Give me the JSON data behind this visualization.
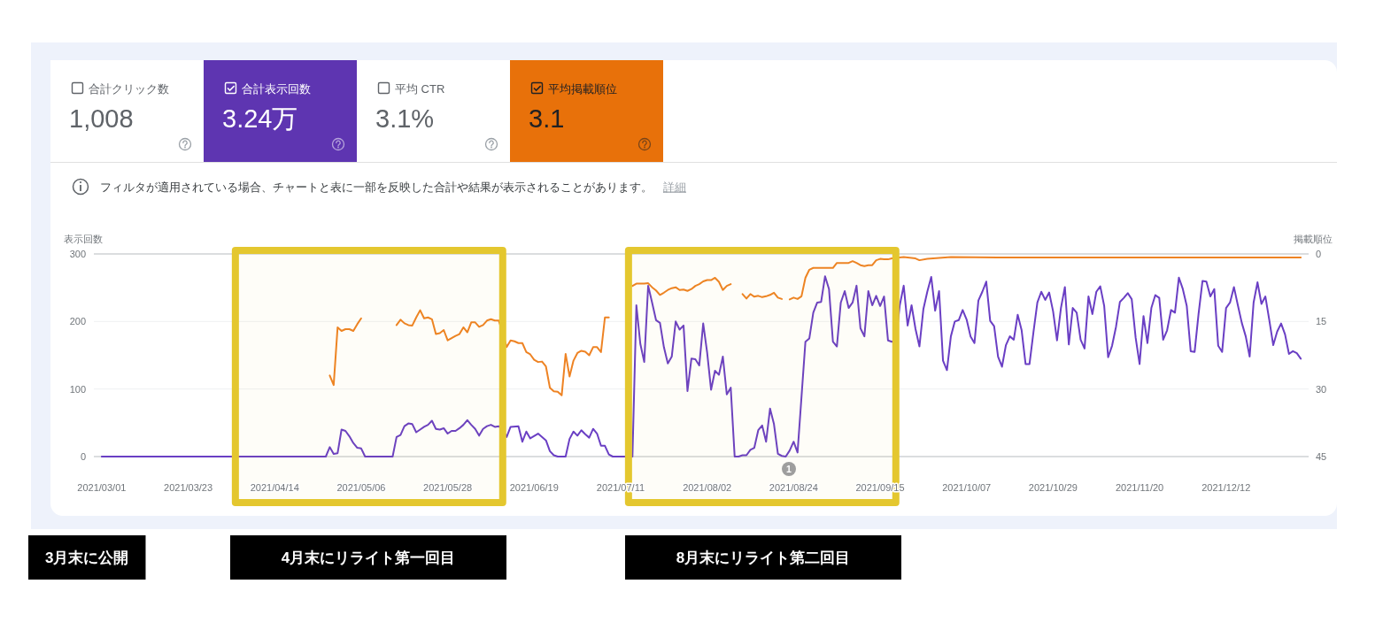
{
  "chart_data": [
    {
      "type": "other",
      "categories": [
        "合計クリック数",
        "合計表示回数",
        "平均 CTR",
        "平均掲載順位"
      ],
      "value_labels": [
        "1,008",
        "3.24万",
        "3.1%",
        "3.1"
      ],
      "colors": [
        null,
        "#5e35b1",
        null,
        "#e8710a"
      ],
      "annotations": [
        "フィルタが適用されている場合、チャートと表に一部を反映した合計や結果が表示されることがあります。",
        "詳細"
      ]
    },
    {
      "type": "line",
      "ylabel": "表示回数",
      "y2label": "掲載順位",
      "xlim": [
        "2021-02-27",
        "2022-01-02"
      ],
      "xticks": [
        {
          "value": "2021-03-01",
          "label": "2021/03/01"
        },
        {
          "value": "2021-03-23",
          "label": "2021/03/23"
        },
        {
          "value": "2021-04-14",
          "label": "2021/04/14"
        },
        {
          "value": "2021-05-06",
          "label": "2021/05/06"
        },
        {
          "value": "2021-05-28",
          "label": "2021/05/28"
        },
        {
          "value": "2021-06-19",
          "label": "2021/06/19"
        },
        {
          "value": "2021-07-11",
          "label": "2021/07/11"
        },
        {
          "value": "2021-08-02",
          "label": "2021/08/02"
        },
        {
          "value": "2021-08-24",
          "label": "2021/08/24"
        },
        {
          "value": "2021-09-15",
          "label": "2021/09/15"
        },
        {
          "value": "2021-10-07",
          "label": "2021/10/07"
        },
        {
          "value": "2021-10-29",
          "label": "2021/10/29"
        },
        {
          "value": "2021-11-20",
          "label": "2021/11/20"
        },
        {
          "value": "2021-12-12",
          "label": "2021/12/12"
        }
      ],
      "ylim": [
        0,
        300
      ],
      "yticks": [
        0,
        100,
        200,
        300
      ],
      "y2lim": [
        45,
        0
      ],
      "y2ticks": [
        0,
        15,
        30,
        45
      ],
      "grid": "y",
      "series": [
        {
          "color": "#6a3fc4",
          "x": [
            "2021-03-01",
            "2021-04-27",
            "2021-04-28",
            "2021-04-29",
            "2021-04-30",
            "2021-05-01",
            "2021-05-02",
            "2021-05-03",
            "2021-05-04",
            "2021-05-05",
            "2021-05-06",
            "2021-05-07",
            "2021-05-14",
            "2021-05-15",
            "2021-05-16",
            "2021-05-17",
            "2021-05-18",
            "2021-05-19",
            "2021-05-20",
            "2021-05-21",
            "2021-05-22",
            "2021-05-23",
            "2021-05-24",
            "2021-05-25",
            "2021-05-26",
            "2021-05-27",
            "2021-05-28",
            "2021-05-29",
            "2021-05-30",
            "2021-05-31",
            "2021-06-01",
            "2021-06-02",
            "2021-06-03",
            "2021-06-04",
            "2021-06-05",
            "2021-06-06",
            "2021-06-07",
            "2021-06-08",
            "2021-06-09",
            "2021-06-10",
            "2021-06-11",
            "2021-06-12",
            "2021-06-13",
            "2021-06-15",
            "2021-06-16",
            "2021-06-17",
            "2021-06-18",
            "2021-06-20",
            "2021-06-22",
            "2021-06-23",
            "2021-06-24",
            "2021-06-25",
            "2021-06-27",
            "2021-06-28",
            "2021-06-29",
            "2021-06-30",
            "2021-07-01",
            "2021-07-02",
            "2021-07-03",
            "2021-07-04",
            "2021-07-05",
            "2021-07-06",
            "2021-07-07",
            "2021-07-08",
            "2021-07-09",
            "2021-07-14",
            "2021-07-15",
            "2021-07-16",
            "2021-07-17",
            "2021-07-18",
            "2021-07-19",
            "2021-07-20",
            "2021-07-21",
            "2021-07-22",
            "2021-07-23",
            "2021-07-24",
            "2021-07-25",
            "2021-07-26",
            "2021-07-27",
            "2021-07-28",
            "2021-07-29",
            "2021-07-30",
            "2021-07-31",
            "2021-08-01",
            "2021-08-02",
            "2021-08-03",
            "2021-08-04",
            "2021-08-05",
            "2021-08-06",
            "2021-08-07",
            "2021-08-08",
            "2021-08-09",
            "2021-08-10",
            "2021-08-11",
            "2021-08-12",
            "2021-08-13",
            "2021-08-14",
            "2021-08-15",
            "2021-08-16",
            "2021-08-17",
            "2021-08-18",
            "2021-08-19",
            "2021-08-20",
            "2021-08-21",
            "2021-08-22",
            "2021-08-23",
            "2021-08-24",
            "2021-08-25",
            "2021-08-27",
            "2021-08-28",
            "2021-08-29",
            "2021-08-30",
            "2021-08-31",
            "2021-09-01",
            "2021-09-02",
            "2021-09-03",
            "2021-09-04",
            "2021-09-05",
            "2021-09-06",
            "2021-09-07",
            "2021-09-08",
            "2021-09-09",
            "2021-09-10",
            "2021-09-11",
            "2021-09-12",
            "2021-09-13",
            "2021-09-14",
            "2021-09-15",
            "2021-09-16",
            "2021-09-17",
            "2021-09-18",
            "2021-09-19",
            "2021-09-20",
            "2021-09-21",
            "2021-09-22",
            "2021-09-23",
            "2021-09-24",
            "2021-09-25",
            "2021-09-26",
            "2021-09-27",
            "2021-09-28",
            "2021-09-29",
            "2021-09-30",
            "2021-10-01",
            "2021-10-02",
            "2021-10-03",
            "2021-10-04",
            "2021-10-05",
            "2021-10-06",
            "2021-10-07",
            "2021-10-08",
            "2021-10-09",
            "2021-10-10",
            "2021-10-11",
            "2021-10-12",
            "2021-10-13",
            "2021-10-14",
            "2021-10-15",
            "2021-10-16",
            "2021-10-17",
            "2021-10-18",
            "2021-10-19",
            "2021-10-20",
            "2021-10-21",
            "2021-10-22",
            "2021-10-23",
            "2021-10-24",
            "2021-10-25",
            "2021-10-26",
            "2021-10-27",
            "2021-10-28",
            "2021-10-29",
            "2021-10-30",
            "2021-10-31",
            "2021-11-01",
            "2021-11-02",
            "2021-11-03",
            "2021-11-04",
            "2021-11-05",
            "2021-11-06",
            "2021-11-07",
            "2021-11-08",
            "2021-11-09",
            "2021-11-10",
            "2021-11-11",
            "2021-11-12",
            "2021-11-13",
            "2021-11-14",
            "2021-11-15",
            "2021-11-16",
            "2021-11-17",
            "2021-11-18",
            "2021-11-19",
            "2021-11-20",
            "2021-11-21",
            "2021-11-22",
            "2021-11-23",
            "2021-11-24",
            "2021-11-25",
            "2021-11-26",
            "2021-11-27",
            "2021-11-28",
            "2021-11-29",
            "2021-11-30",
            "2021-12-01",
            "2021-12-02",
            "2021-12-03",
            "2021-12-04",
            "2021-12-05",
            "2021-12-06",
            "2021-12-07",
            "2021-12-08",
            "2021-12-09",
            "2021-12-10",
            "2021-12-11",
            "2021-12-12",
            "2021-12-13",
            "2021-12-14",
            "2021-12-15",
            "2021-12-16",
            "2021-12-17",
            "2021-12-18",
            "2021-12-19",
            "2021-12-20",
            "2021-12-21",
            "2021-12-22",
            "2021-12-23",
            "2021-12-24",
            "2021-12-25",
            "2021-12-26",
            "2021-12-27",
            "2021-12-28",
            "2021-12-29",
            "2021-12-30",
            "2021-12-31"
          ],
          "values": [
            0,
            0,
            14,
            4,
            5,
            40,
            38,
            30,
            20,
            13,
            12,
            0,
            0,
            29,
            32,
            45,
            49,
            48,
            36,
            40,
            44,
            47,
            53,
            41,
            40,
            42,
            34,
            38,
            38,
            42,
            47,
            54,
            47,
            41,
            31,
            41,
            45,
            47,
            44,
            45,
            40,
            29,
            44,
            45,
            22,
            37,
            27,
            34,
            24,
            8,
            2,
            0,
            0,
            26,
            37,
            31,
            39,
            33,
            28,
            41,
            34,
            16,
            16,
            3,
            0,
            0,
            224,
            167,
            140,
            253,
            228,
            202,
            198,
            162,
            138,
            148,
            200,
            188,
            194,
            97,
            145,
            144,
            135,
            197,
            154,
            99,
            127,
            121,
            148,
            92,
            102,
            0,
            0,
            2,
            2,
            10,
            13,
            39,
            46,
            22,
            71,
            48,
            4,
            1,
            0,
            9,
            22,
            6,
            170,
            175,
            213,
            228,
            229,
            267,
            248,
            170,
            163,
            228,
            245,
            220,
            228,
            253,
            190,
            178,
            245,
            224,
            238,
            223,
            237,
            172,
            170,
            172,
            224,
            253,
            194,
            224,
            189,
            163,
            218,
            244,
            266,
            216,
            245,
            142,
            128,
            178,
            200,
            202,
            217,
            203,
            178,
            168,
            231,
            244,
            259,
            201,
            193,
            148,
            133,
            165,
            178,
            173,
            210,
            187,
            137,
            137,
            184,
            228,
            244,
            232,
            243,
            215,
            172,
            220,
            251,
            166,
            220,
            213,
            173,
            160,
            237,
            211,
            244,
            252,
            223,
            147,
            164,
            192,
            229,
            235,
            242,
            233,
            176,
            137,
            208,
            168,
            220,
            239,
            235,
            173,
            187,
            217,
            213,
            265,
            248,
            223,
            156,
            155,
            211,
            260,
            259,
            237,
            248,
            164,
            155,
            220,
            228,
            251,
            224,
            198,
            178,
            148,
            228,
            258,
            226,
            237,
            202,
            165,
            185,
            197,
            181,
            152,
            156,
            153,
            145
          ]
        },
        {
          "color": "#ee8324",
          "axis": "y2",
          "x": [
            "2021-04-28",
            "2021-04-29",
            "2021-04-30",
            "2021-05-01",
            "2021-05-02",
            "2021-05-03",
            "2021-05-04",
            "2021-05-05",
            "2021-05-06"
          ],
          "values": [
            27.0,
            29.1,
            16.3,
            17.1,
            16.7,
            16.7,
            17.1,
            15.6,
            14.3
          ]
        },
        {
          "color": "#ee8324",
          "axis": "y2",
          "x": [
            "2021-05-15",
            "2021-05-16",
            "2021-05-17",
            "2021-05-18",
            "2021-05-19",
            "2021-05-20",
            "2021-05-21",
            "2021-05-22",
            "2021-05-23",
            "2021-05-24",
            "2021-05-25",
            "2021-05-26",
            "2021-05-27",
            "2021-05-28",
            "2021-05-29",
            "2021-05-30",
            "2021-05-31",
            "2021-06-01",
            "2021-06-02",
            "2021-06-03",
            "2021-06-04",
            "2021-06-05",
            "2021-06-06",
            "2021-06-07",
            "2021-06-08",
            "2021-06-09",
            "2021-06-10",
            "2021-06-11",
            "2021-06-12",
            "2021-06-13",
            "2021-06-14",
            "2021-06-15",
            "2021-06-16",
            "2021-06-17",
            "2021-06-18",
            "2021-06-19",
            "2021-06-20",
            "2021-06-21",
            "2021-06-22",
            "2021-06-23",
            "2021-06-24",
            "2021-06-25",
            "2021-06-26",
            "2021-06-27",
            "2021-06-28",
            "2021-06-29",
            "2021-06-30",
            "2021-07-01",
            "2021-07-02",
            "2021-07-03",
            "2021-07-04",
            "2021-07-05",
            "2021-07-06",
            "2021-07-07",
            "2021-07-08"
          ],
          "values": [
            15.8,
            14.6,
            15.4,
            15.8,
            15.9,
            14.1,
            12.5,
            14.3,
            14.1,
            14.5,
            17.8,
            17.6,
            16.9,
            19.2,
            18.7,
            18.2,
            17.8,
            16.3,
            17.4,
            15.2,
            15.2,
            16.2,
            15.8,
            14.8,
            14.5,
            14.8,
            14.8,
            17.5,
            20.7,
            19.2,
            19.4,
            19.8,
            19.8,
            21.8,
            22.3,
            23.5,
            24.0,
            23.9,
            25.0,
            29.7,
            30.5,
            30.6,
            31.4,
            22.2,
            27.2,
            23.7,
            22.0,
            21.5,
            21.7,
            22.5,
            20.7,
            20.7,
            21.8,
            14.1,
            14.1
          ]
        },
        {
          "color": "#ee8324",
          "axis": "y2",
          "x": [
            "2021-07-14",
            "2021-07-15",
            "2021-07-16",
            "2021-07-17",
            "2021-07-18",
            "2021-07-19",
            "2021-07-20",
            "2021-07-21",
            "2021-07-22",
            "2021-07-23",
            "2021-07-24",
            "2021-07-25",
            "2021-07-26",
            "2021-07-27",
            "2021-07-28",
            "2021-07-29",
            "2021-07-30",
            "2021-07-31",
            "2021-08-01",
            "2021-08-02",
            "2021-08-03",
            "2021-08-04",
            "2021-08-05",
            "2021-08-06",
            "2021-08-07",
            "2021-08-08"
          ],
          "values": [
            7.1,
            6.6,
            6.6,
            6.6,
            6.5,
            7.4,
            8.1,
            9.1,
            8.6,
            8.0,
            7.6,
            7.4,
            8.0,
            7.9,
            8.2,
            7.8,
            7.1,
            6.7,
            6.1,
            5.8,
            5.8,
            5.3,
            6.2,
            8.0,
            7.1,
            6.7
          ]
        },
        {
          "color": "#ee8324",
          "axis": "y2",
          "x": [
            "2021-08-11",
            "2021-08-12",
            "2021-08-13",
            "2021-08-14",
            "2021-08-15",
            "2021-08-16",
            "2021-08-17",
            "2021-08-18",
            "2021-08-19",
            "2021-08-20",
            "2021-08-21"
          ],
          "values": [
            8.9,
            9.9,
            8.9,
            9.5,
            9.3,
            9.6,
            9.4,
            9.1,
            8.6,
            9.7,
            10.0
          ]
        },
        {
          "color": "#ee8324",
          "axis": "y2",
          "x": [
            "2021-08-23",
            "2021-08-24",
            "2021-08-25",
            "2021-08-26",
            "2021-08-27",
            "2021-08-28",
            "2021-08-29",
            "2021-08-30",
            "2021-08-31",
            "2021-09-01",
            "2021-09-02",
            "2021-09-03",
            "2021-09-04",
            "2021-09-05",
            "2021-09-06",
            "2021-09-07",
            "2021-09-08",
            "2021-09-09",
            "2021-09-10",
            "2021-09-11",
            "2021-09-12",
            "2021-09-13",
            "2021-09-14",
            "2021-09-15",
            "2021-09-16",
            "2021-09-17",
            "2021-09-18",
            "2021-09-21",
            "2021-09-24",
            "2021-09-25",
            "2021-09-27",
            "2021-09-30",
            "2021-10-03",
            "2021-10-15",
            "2021-11-15",
            "2021-12-15",
            "2021-12-31"
          ],
          "values": [
            10.1,
            9.7,
            10.0,
            9.4,
            5.3,
            3.5,
            3.1,
            3.1,
            3.1,
            3.1,
            3.1,
            3.1,
            2.0,
            2.0,
            2.0,
            2.0,
            1.6,
            2.0,
            2.5,
            2.7,
            2.5,
            2.5,
            1.4,
            1.1,
            1.2,
            1.2,
            1.0,
            0.7,
            1.0,
            1.4,
            1.1,
            0.9,
            0.7,
            0.8,
            0.8,
            0.8,
            0.8
          ]
        }
      ],
      "bands": [
        {
          "axis": "x",
          "from": "2021-04-04",
          "to": "2021-06-11",
          "color": "#e4c72f"
        },
        {
          "axis": "x",
          "from": "2021-07-13",
          "to": "2021-09-19",
          "color": "#e4c72f"
        }
      ],
      "annotations": [
        "1",
        "3月末に公開",
        "4月末にリライト第一回目",
        "8月末にリライト第二回目"
      ]
    }
  ]
}
